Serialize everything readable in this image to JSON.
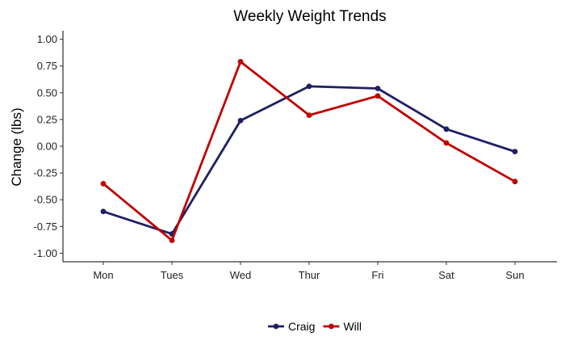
{
  "chart_data": {
    "type": "line",
    "title": "Weekly Weight Trends",
    "xlabel": "",
    "ylabel": "Change (lbs)",
    "categories": [
      "Mon",
      "Tues",
      "Wed",
      "Thur",
      "Fri",
      "Sat",
      "Sun"
    ],
    "ylim": [
      -1.08,
      1.08
    ],
    "yticks": [
      1.0,
      0.75,
      0.5,
      0.25,
      0.0,
      -0.25,
      -0.5,
      -0.75,
      -1.0
    ],
    "ytick_labels": [
      "1.00",
      "0.75",
      "0.50",
      "0.25",
      "0.00",
      "-0.25",
      "-0.50",
      "-0.75",
      "-1.00"
    ],
    "grid": false,
    "legend_position": "bottom",
    "series": [
      {
        "name": "Craig",
        "color": "#1f1f63",
        "values": [
          -0.61,
          -0.82,
          0.24,
          0.56,
          0.54,
          0.16,
          -0.05
        ]
      },
      {
        "name": "Will",
        "color": "#c00000",
        "values": [
          -0.35,
          -0.88,
          0.79,
          0.29,
          0.47,
          0.03,
          -0.33
        ]
      }
    ]
  }
}
